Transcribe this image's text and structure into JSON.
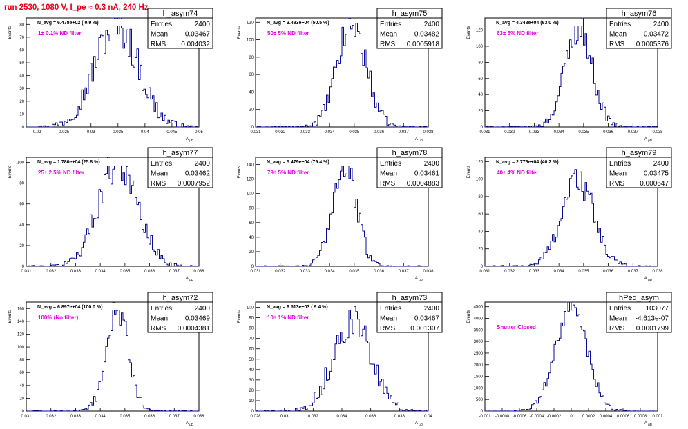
{
  "page_title": "run 2530,  1080 V, I_pe ≈ 0.3 nA, 240 Hz",
  "colors": {
    "title": "#e8001c",
    "histogram": "#0b0b8f",
    "annotation": "#e000e0",
    "axis": "#000000"
  },
  "y_axis_label": "Events",
  "x_axis_label": "A",
  "x_axis_label_sub": "μD",
  "chart_data": [
    {
      "type": "histogram",
      "name": "h_asym74",
      "entries": "2400",
      "mean": "0.03467",
      "rms": "0.004032",
      "n_avg": "N_avg = 6.478e+02 ( 0.9 %)",
      "annotation": "1± 0.1% ND filter",
      "xlim": [
        0.018,
        0.05
      ],
      "ylim": [
        0,
        85
      ],
      "xticks": [
        0.02,
        0.025,
        0.03,
        0.035,
        0.04,
        0.045,
        0.05
      ],
      "xticklabels": [
        "0.02",
        "0.025",
        "0.03",
        "0.035",
        "0.04",
        "0.045",
        "0.05"
      ],
      "yticks": [
        0,
        10,
        20,
        30,
        40,
        50,
        60,
        70,
        80
      ],
      "yticklabels": [
        "0",
        "10",
        "20",
        "30",
        "40",
        "50",
        "60",
        "70",
        "80"
      ],
      "dist": {
        "mu": 0.0347,
        "sigma": 0.004032,
        "peak": 80
      }
    },
    {
      "type": "histogram",
      "name": "h_asym75",
      "entries": "2400",
      "mean": "0.03482",
      "rms": "0.0005918",
      "n_avg": "N_avg = 3.483e+04 (50.5 %)",
      "annotation": "50± 5% ND filter",
      "xlim": [
        0.031,
        0.038
      ],
      "ylim": [
        0,
        125
      ],
      "xticks": [
        0.031,
        0.032,
        0.033,
        0.034,
        0.035,
        0.036,
        0.037,
        0.038
      ],
      "xticklabels": [
        "0.031",
        "0.032",
        "0.033",
        "0.034",
        "0.035",
        "0.036",
        "0.037",
        "0.038"
      ],
      "yticks": [
        0,
        20,
        40,
        60,
        80,
        100,
        120
      ],
      "yticklabels": [
        "0",
        "20",
        "40",
        "60",
        "80",
        "100",
        "120"
      ],
      "dist": {
        "mu": 0.0349,
        "sigma": 0.00059,
        "peak": 118
      }
    },
    {
      "type": "histogram",
      "name": "h_asym76",
      "entries": "2400",
      "mean": "0.03472",
      "rms": "0.0005376",
      "n_avg": "N_avg = 4.348e+04 (63.0 %)",
      "annotation": "63± 5% ND filter",
      "xlim": [
        0.031,
        0.038
      ],
      "ylim": [
        0,
        135
      ],
      "xticks": [
        0.031,
        0.032,
        0.033,
        0.034,
        0.035,
        0.036,
        0.037,
        0.038
      ],
      "xticklabels": [
        "0.031",
        "0.032",
        "0.033",
        "0.034",
        "0.035",
        "0.036",
        "0.037",
        "0.038"
      ],
      "yticks": [
        0,
        20,
        40,
        60,
        80,
        100,
        120
      ],
      "yticklabels": [
        "0",
        "20",
        "40",
        "60",
        "80",
        "100",
        "120"
      ],
      "dist": {
        "mu": 0.0348,
        "sigma": 0.00054,
        "peak": 125
      }
    },
    {
      "type": "histogram",
      "name": "h_asym77",
      "entries": "2400",
      "mean": "0.03462",
      "rms": "0.0007952",
      "n_avg": "N_avg = 1.780e+04 (25.8 %)",
      "annotation": "25± 2.5% ND filter",
      "xlim": [
        0.031,
        0.038
      ],
      "ylim": [
        0,
        105
      ],
      "xticks": [
        0.031,
        0.032,
        0.033,
        0.034,
        0.035,
        0.036,
        0.037,
        0.038
      ],
      "xticklabels": [
        "0.031",
        "0.032",
        "0.033",
        "0.034",
        "0.035",
        "0.036",
        "0.037",
        "0.038"
      ],
      "yticks": [
        0,
        20,
        40,
        60,
        80,
        100
      ],
      "yticklabels": [
        "0",
        "20",
        "40",
        "60",
        "80",
        "100"
      ],
      "dist": {
        "mu": 0.0347,
        "sigma": 0.00079,
        "peak": 100
      }
    },
    {
      "type": "histogram",
      "name": "h_asym78",
      "entries": "2400",
      "mean": "0.03461",
      "rms": "0.0004883",
      "n_avg": "N_avg = 5.479e+04 (79.4 %)",
      "annotation": "79± 5% ND filter",
      "xlim": [
        0.031,
        0.038
      ],
      "ylim": [
        0,
        150
      ],
      "xticks": [
        0.031,
        0.032,
        0.033,
        0.034,
        0.035,
        0.036,
        0.037,
        0.038
      ],
      "xticklabels": [
        "0.031",
        "0.032",
        "0.033",
        "0.034",
        "0.035",
        "0.036",
        "0.037",
        "0.038"
      ],
      "yticks": [
        0,
        20,
        40,
        60,
        80,
        100,
        120,
        140
      ],
      "yticklabels": [
        "0",
        "20",
        "40",
        "60",
        "80",
        "100",
        "120",
        "140"
      ],
      "dist": {
        "mu": 0.0346,
        "sigma": 0.00049,
        "peak": 140
      }
    },
    {
      "type": "histogram",
      "name": "h_asym79",
      "entries": "2400",
      "mean": "0.03475",
      "rms": "0.000647",
      "n_avg": "N_avg = 2.776e+04 (40.2 %)",
      "annotation": "40± 4% ND filter",
      "xlim": [
        0.031,
        0.038
      ],
      "ylim": [
        0,
        125
      ],
      "xticks": [
        0.031,
        0.032,
        0.033,
        0.034,
        0.035,
        0.036,
        0.037,
        0.038
      ],
      "xticklabels": [
        "0.031",
        "0.032",
        "0.033",
        "0.034",
        "0.035",
        "0.036",
        "0.037",
        "0.038"
      ],
      "yticks": [
        0,
        20,
        40,
        60,
        80,
        100,
        120
      ],
      "yticklabels": [
        "0",
        "20",
        "40",
        "60",
        "80",
        "100",
        "120"
      ],
      "dist": {
        "mu": 0.03475,
        "sigma": 0.00065,
        "peak": 100
      }
    },
    {
      "type": "histogram",
      "name": "h_asym72",
      "entries": "2400",
      "mean": "0.03469",
      "rms": "0.0004381",
      "n_avg": "N_avg = 6.897e+04 (100.0 %)",
      "annotation": "100% (No filter)",
      "xlim": [
        0.031,
        0.038
      ],
      "ylim": [
        0,
        170
      ],
      "xticks": [
        0.031,
        0.032,
        0.033,
        0.034,
        0.035,
        0.036,
        0.037,
        0.038
      ],
      "xticklabels": [
        "0.031",
        "0.032",
        "0.033",
        "0.034",
        "0.035",
        "0.036",
        "0.037",
        "0.038"
      ],
      "yticks": [
        0,
        20,
        40,
        60,
        80,
        100,
        120,
        140,
        160
      ],
      "yticklabels": [
        "0",
        "20",
        "40",
        "60",
        "80",
        "100",
        "120",
        "140",
        "160"
      ],
      "dist": {
        "mu": 0.0347,
        "sigma": 0.00044,
        "peak": 160
      }
    },
    {
      "type": "histogram",
      "name": "h_asym73",
      "entries": "2400",
      "mean": "0.03467",
      "rms": "0.001307",
      "n_avg": "N_avg = 6.513e+03 ( 9.4 %)",
      "annotation": "10± 1% ND filter",
      "xlim": [
        0.028,
        0.04
      ],
      "ylim": [
        0,
        105
      ],
      "xticks": [
        0.028,
        0.03,
        0.032,
        0.034,
        0.036,
        0.038,
        0.04
      ],
      "xticklabels": [
        "0.028",
        "0.03",
        "0.032",
        "0.034",
        "0.036",
        "0.038",
        "0.04"
      ],
      "yticks": [
        0,
        10,
        20,
        30,
        40,
        50,
        60,
        70,
        80,
        90,
        100
      ],
      "yticklabels": [
        "0",
        "10",
        "20",
        "30",
        "40",
        "50",
        "60",
        "70",
        "80",
        "90",
        "100"
      ],
      "dist": {
        "mu": 0.0347,
        "sigma": 0.0013,
        "peak": 88
      }
    },
    {
      "type": "histogram",
      "name": "hPed_asym",
      "entries": "103077",
      "mean": "-4.613e-07",
      "rms": "0.0001799",
      "n_avg": "",
      "annotation": "Shutter Closed",
      "xlim": [
        -0.001,
        0.001
      ],
      "ylim": [
        0,
        4700
      ],
      "xticks": [
        -0.001,
        -0.0008,
        -0.0006,
        -0.0004,
        -0.0002,
        0,
        0.0002,
        0.0004,
        0.0006,
        0.0008,
        0.001
      ],
      "xticklabels": [
        "-0.001",
        "-0.0008",
        "-0.0006",
        "-0.0004",
        "-0.0002",
        "0",
        "0.0002",
        "0.0004",
        "0.0006",
        "0.0008",
        "0.001"
      ],
      "yticks": [
        0,
        500,
        1000,
        1500,
        2000,
        2500,
        3000,
        3500,
        4000,
        4500
      ],
      "yticklabels": [
        "0",
        "500",
        "1000",
        "1500",
        "2000",
        "2500",
        "3000",
        "3500",
        "4000",
        "4500"
      ],
      "dist": {
        "mu": 0,
        "sigma": 0.00018,
        "peak": 4500
      }
    }
  ]
}
